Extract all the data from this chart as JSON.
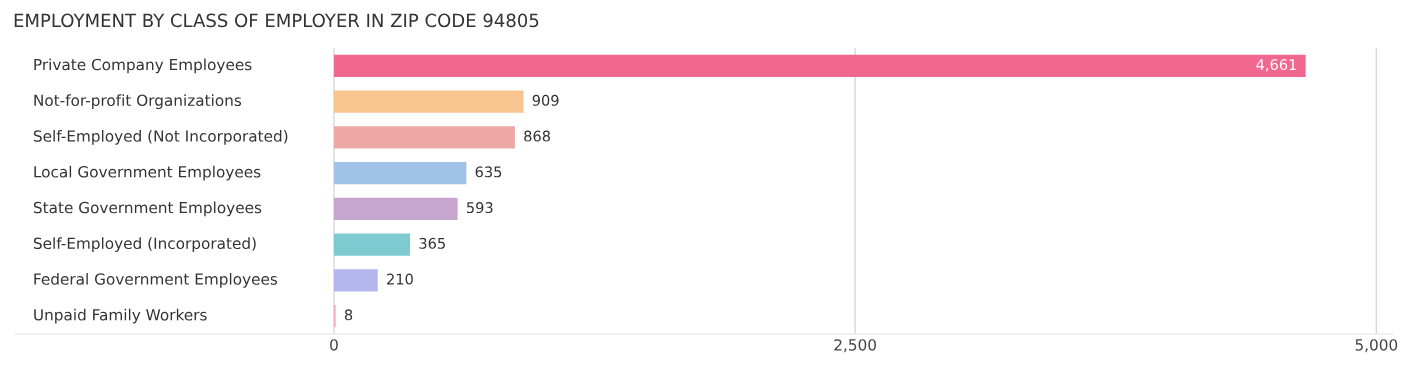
{
  "chart_data": {
    "type": "bar",
    "orientation": "horizontal",
    "title": "EMPLOYMENT BY CLASS OF EMPLOYER IN ZIP CODE 94805",
    "categories": [
      "Private Company Employees",
      "Not-for-profit Organizations",
      "Self-Employed (Not Incorporated)",
      "Local Government Employees",
      "State Government Employees",
      "Self-Employed (Incorporated)",
      "Federal Government Employees",
      "Unpaid Family Workers"
    ],
    "values": [
      4661,
      909,
      868,
      635,
      593,
      365,
      210,
      8
    ],
    "value_labels": [
      "4,661",
      "909",
      "868",
      "635",
      "593",
      "365",
      "210",
      "8"
    ],
    "colors": [
      "#f06790",
      "#f8c48f",
      "#eea8a3",
      "#a0c1e8",
      "#c7a5cf",
      "#7dcbd0",
      "#b4b7ee",
      "#f8a9c2"
    ],
    "xlim": [
      -1530,
      5080
    ],
    "xticks": [
      0,
      {
        "value": 2500,
        "label": "2,500"
      },
      {
        "value": 5000,
        "label": "5,000"
      }
    ],
    "grid": "x"
  }
}
